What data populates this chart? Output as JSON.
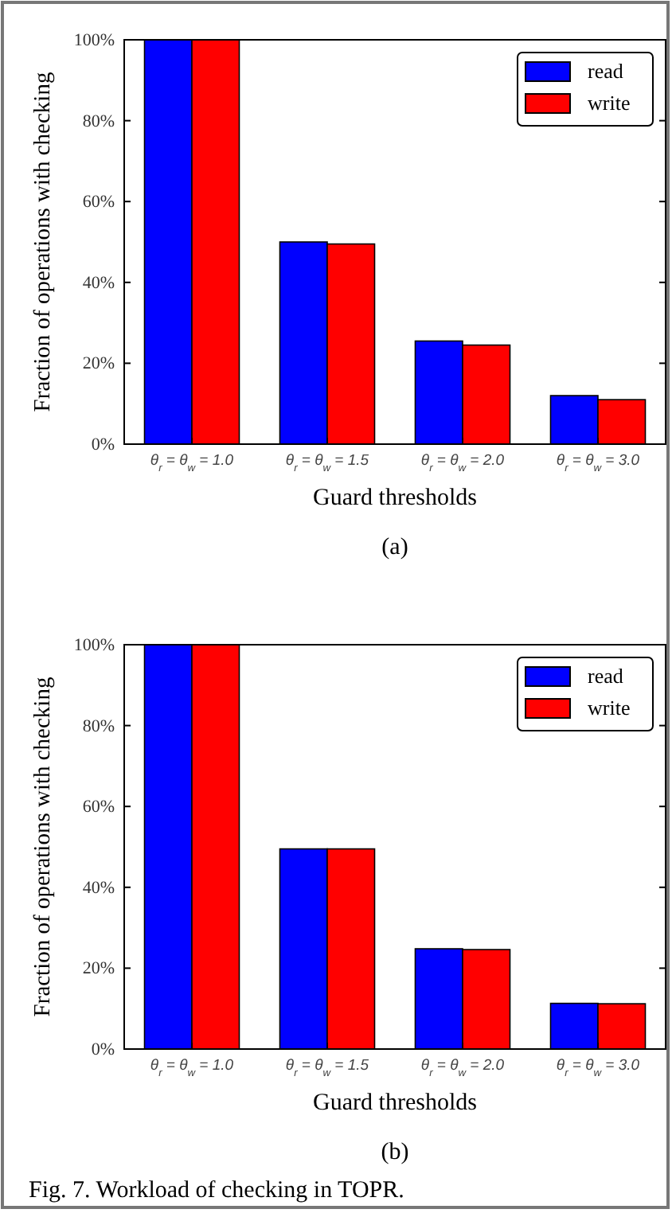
{
  "chart_data": [
    {
      "type": "bar",
      "subtitle": "(a)",
      "xlabel": "Guard thresholds",
      "ylabel": "Fraction of operations with checking",
      "categories": [
        "θ$_{r}$ = θ$_{w}$ = 1.0",
        "θ$_{r}$ = θ$_{w}$ = 1.5",
        "θ$_{r}$ = θ$_{w}$ = 2.0",
        "θ$_{r}$ = θ$_{w}$ = 3.0"
      ],
      "series": [
        {
          "name": "read",
          "color": "#0000ff",
          "values": [
            100,
            50,
            25.5,
            12
          ]
        },
        {
          "name": "write",
          "color": "#ff0000",
          "values": [
            100,
            49.5,
            24.5,
            11
          ]
        }
      ],
      "ylim": [
        0,
        100
      ],
      "yticks": [
        {
          "value": 0,
          "label": "0%"
        },
        {
          "value": 20,
          "label": "20%"
        },
        {
          "value": 40,
          "label": "40%"
        },
        {
          "value": 60,
          "label": "60%"
        },
        {
          "value": 80,
          "label": "80%"
        },
        {
          "value": 100,
          "label": "100%"
        }
      ],
      "grid": false,
      "legend": "top right"
    },
    {
      "type": "bar",
      "subtitle": "(b)",
      "xlabel": "Guard thresholds",
      "ylabel": "Fraction of operations with checking",
      "categories": [
        "θ$_{r}$ = θ$_{w}$ = 1.0",
        "θ$_{r}$ = θ$_{w}$ = 1.5",
        "θ$_{r}$ = θ$_{w}$ = 2.0",
        "θ$_{r}$ = θ$_{w}$ = 3.0"
      ],
      "series": [
        {
          "name": "read",
          "color": "#0000ff",
          "values": [
            100,
            49.5,
            24.8,
            11.3
          ]
        },
        {
          "name": "write",
          "color": "#ff0000",
          "values": [
            100,
            49.5,
            24.6,
            11.2
          ]
        }
      ],
      "ylim": [
        0,
        100
      ],
      "yticks": [
        {
          "value": 0,
          "label": "0%"
        },
        {
          "value": 20,
          "label": "20%"
        },
        {
          "value": 40,
          "label": "40%"
        },
        {
          "value": 60,
          "label": "60%"
        },
        {
          "value": 80,
          "label": "80%"
        },
        {
          "value": 100,
          "label": "100%"
        }
      ],
      "grid": false,
      "legend": "top right",
      "annotations": [
        "Fig. 7.  Workload of checking in TOPR."
      ]
    }
  ]
}
